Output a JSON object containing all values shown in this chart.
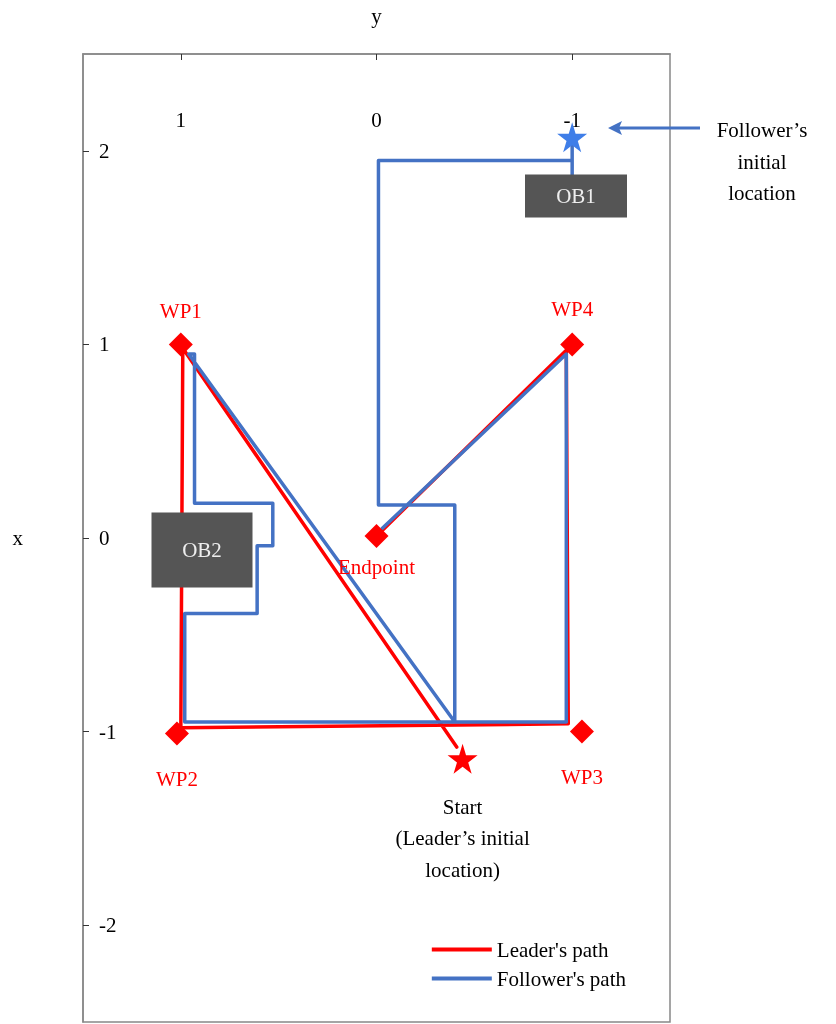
{
  "chart_data": {
    "type": "line",
    "xlabel": "y",
    "ylabel": "x",
    "xlim": [
      1.5,
      -1.5
    ],
    "xticks": [
      1,
      0,
      -1
    ],
    "ylim": [
      -2.5,
      2.5
    ],
    "yticks": [
      2,
      1,
      0,
      -1,
      -2
    ],
    "grid": false,
    "legend": "bottom right",
    "series": [
      {
        "name": "Leader's path",
        "color": "#ff0000",
        "marker": "none",
        "x": [
          -0.41,
          0.99,
          1.0,
          -0.98,
          -0.97,
          -0.02
        ],
        "values": [
          -1.08,
          0.98,
          -0.98,
          -0.96,
          0.97,
          0.03
        ]
      },
      {
        "name": "Follower's path",
        "color": "#4472c4",
        "marker": "none",
        "x": [
          -1,
          -1,
          -1,
          -0.01,
          -0.01,
          -0.4,
          -0.4,
          0.96,
          0.93,
          0.93,
          0.53,
          0.53,
          0.61,
          0.61,
          0.98,
          0.98,
          -0.97,
          -0.97,
          -0.03
        ],
        "values": [
          2.07,
          1.87,
          1.95,
          1.95,
          0.17,
          0.17,
          -0.95,
          0.95,
          0.95,
          0.18,
          0.18,
          -0.04,
          -0.04,
          -0.39,
          -0.39,
          -0.95,
          -0.95,
          0.95,
          0.05
        ]
      },
      {
        "type": "scatter",
        "color": "#ff0000",
        "marker": "diamond",
        "x": [
          1.0,
          1.02,
          -1.05,
          -1.0,
          0.0
        ],
        "values": [
          1.0,
          -1.01,
          -1.0,
          1.0,
          0.01
        ]
      },
      {
        "type": "scatter",
        "color": "#ff0000",
        "marker": "star",
        "x": [
          -0.44
        ],
        "values": [
          -1.14
        ]
      },
      {
        "type": "scatter",
        "color": "#3f7ee8",
        "marker": "star",
        "x": [
          -1.0
        ],
        "values": [
          2.07
        ]
      }
    ],
    "annotations": [
      {
        "text": "WP1",
        "x": 1.0,
        "y": 1.0
      },
      {
        "text": "WP2",
        "x": 1.02,
        "y": -1.01
      },
      {
        "text": "WP3",
        "x": -1.05,
        "y": -1.0
      },
      {
        "text": "WP4",
        "x": -1.0,
        "y": 1.0
      },
      {
        "text": "Endpoint",
        "x": 0.0,
        "y": 0.01
      },
      {
        "text": "Start\n(Leader’s initial\nlocation)",
        "x": -0.44,
        "y": -1.14
      },
      "Follower’s\ninitial\nlocation",
      "OB1",
      "OB2"
    ]
  }
}
